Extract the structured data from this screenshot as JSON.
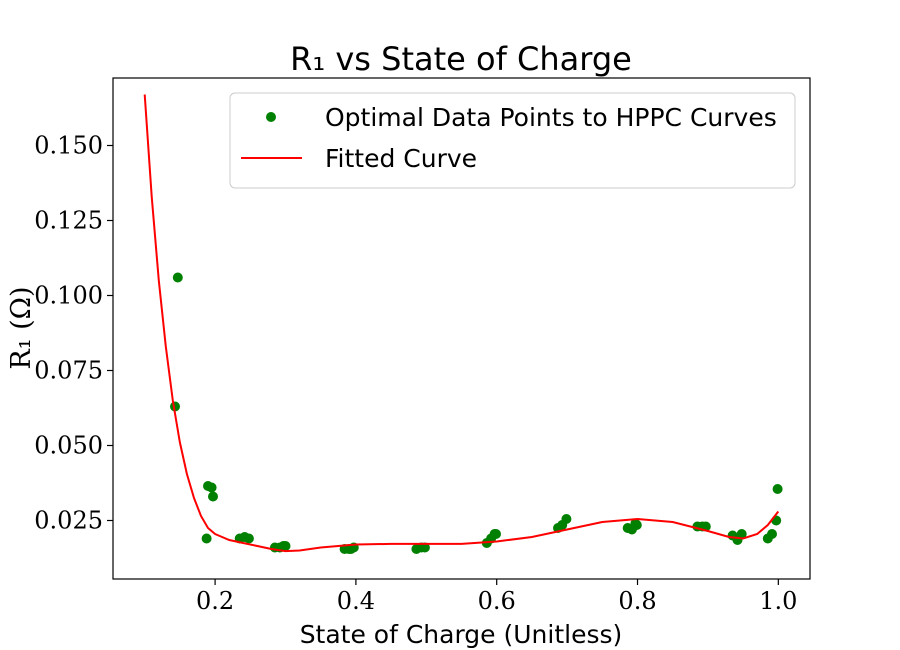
{
  "chart_data": {
    "type": "scatter",
    "title": "R₁ vs State of Charge",
    "xlabel": "State of Charge (Unitless)",
    "ylabel": "R₁ (Ω)",
    "xlim": [
      0.055,
      1.045
    ],
    "ylim": [
      0.0055,
      0.1725
    ],
    "xticks": [
      0.2,
      0.4,
      0.6,
      0.8,
      1.0
    ],
    "xtick_labels": [
      "0.2",
      "0.4",
      "0.6",
      "0.8",
      "1.0"
    ],
    "yticks": [
      0.025,
      0.05,
      0.075,
      0.1,
      0.125,
      0.15
    ],
    "ytick_labels": [
      "0.025",
      "0.050",
      "0.075",
      "0.100",
      "0.125",
      "0.150"
    ],
    "grid": false,
    "legend_position": "upper-right",
    "series": [
      {
        "name": "Optimal Data Points to HPPC Curves",
        "kind": "scatter",
        "color": "#008000",
        "points": [
          [
            0.143,
            0.063
          ],
          [
            0.147,
            0.106
          ],
          [
            0.188,
            0.019
          ],
          [
            0.19,
            0.0365
          ],
          [
            0.195,
            0.036
          ],
          [
            0.197,
            0.033
          ],
          [
            0.235,
            0.019
          ],
          [
            0.242,
            0.0195
          ],
          [
            0.248,
            0.019
          ],
          [
            0.285,
            0.016
          ],
          [
            0.292,
            0.016
          ],
          [
            0.297,
            0.0165
          ],
          [
            0.3,
            0.0165
          ],
          [
            0.384,
            0.0155
          ],
          [
            0.39,
            0.0155
          ],
          [
            0.393,
            0.0155
          ],
          [
            0.397,
            0.016
          ],
          [
            0.486,
            0.0155
          ],
          [
            0.493,
            0.016
          ],
          [
            0.498,
            0.016
          ],
          [
            0.586,
            0.0175
          ],
          [
            0.592,
            0.019
          ],
          [
            0.597,
            0.0205
          ],
          [
            0.599,
            0.0205
          ],
          [
            0.687,
            0.0225
          ],
          [
            0.693,
            0.0235
          ],
          [
            0.699,
            0.0255
          ],
          [
            0.786,
            0.0225
          ],
          [
            0.792,
            0.022
          ],
          [
            0.797,
            0.024
          ],
          [
            0.799,
            0.0235
          ],
          [
            0.885,
            0.023
          ],
          [
            0.892,
            0.023
          ],
          [
            0.897,
            0.023
          ],
          [
            0.935,
            0.02
          ],
          [
            0.942,
            0.0185
          ],
          [
            0.948,
            0.0205
          ],
          [
            0.985,
            0.019
          ],
          [
            0.991,
            0.0205
          ],
          [
            0.997,
            0.025
          ],
          [
            0.999,
            0.0355
          ]
        ]
      },
      {
        "name": "Fitted Curve",
        "kind": "line",
        "color": "#ff0000",
        "points": [
          [
            0.1,
            0.167
          ],
          [
            0.11,
            0.133
          ],
          [
            0.12,
            0.105
          ],
          [
            0.13,
            0.083
          ],
          [
            0.14,
            0.065
          ],
          [
            0.15,
            0.051
          ],
          [
            0.16,
            0.0405
          ],
          [
            0.17,
            0.0325
          ],
          [
            0.18,
            0.0265
          ],
          [
            0.19,
            0.0225
          ],
          [
            0.2,
            0.0205
          ],
          [
            0.21,
            0.0195
          ],
          [
            0.22,
            0.0185
          ],
          [
            0.24,
            0.0175
          ],
          [
            0.26,
            0.0165
          ],
          [
            0.28,
            0.0155
          ],
          [
            0.3,
            0.0148
          ],
          [
            0.32,
            0.015
          ],
          [
            0.35,
            0.016
          ],
          [
            0.4,
            0.017
          ],
          [
            0.45,
            0.0172
          ],
          [
            0.5,
            0.0172
          ],
          [
            0.55,
            0.0172
          ],
          [
            0.6,
            0.018
          ],
          [
            0.65,
            0.0195
          ],
          [
            0.7,
            0.022
          ],
          [
            0.75,
            0.0245
          ],
          [
            0.8,
            0.0255
          ],
          [
            0.85,
            0.0245
          ],
          [
            0.9,
            0.0215
          ],
          [
            0.93,
            0.0195
          ],
          [
            0.95,
            0.019
          ],
          [
            0.97,
            0.0205
          ],
          [
            0.985,
            0.0235
          ],
          [
            1.0,
            0.028
          ]
        ]
      }
    ]
  }
}
